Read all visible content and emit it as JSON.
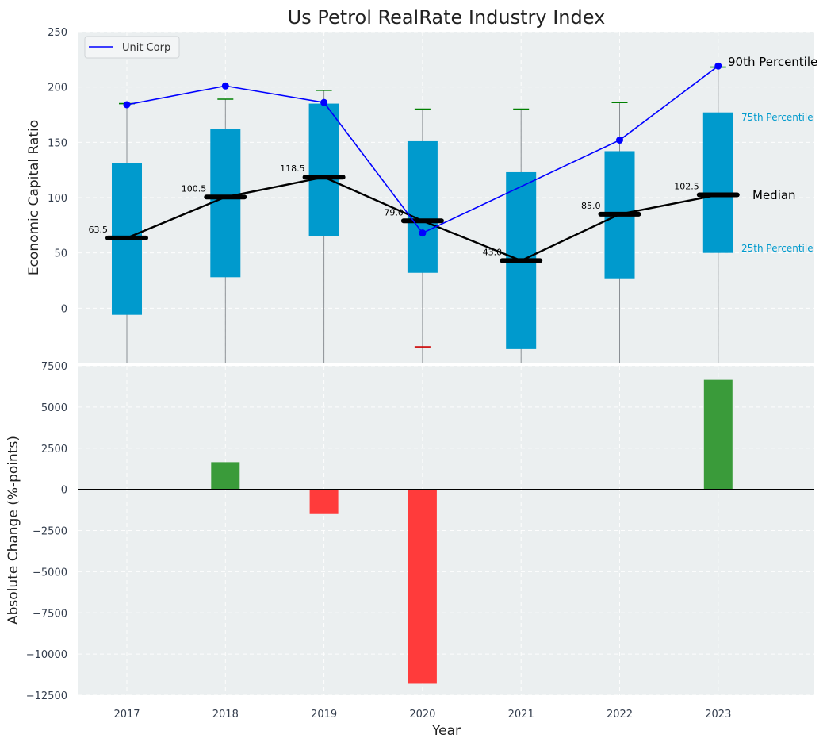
{
  "chart_data": [
    {
      "type": "box",
      "title": "Us Petrol RealRate Industry Index",
      "ylabel": "Economic Capital Ratio",
      "ylim": [
        -50,
        250
      ],
      "yticks": [
        0,
        50,
        100,
        150,
        200,
        250
      ],
      "categories": [
        "2017",
        "2018",
        "2019",
        "2020",
        "2021",
        "2022",
        "2023"
      ],
      "boxes": [
        {
          "year": "2017",
          "q1": -6,
          "q3": 131,
          "median": 63.5,
          "median_label": "63.5",
          "whisker_high": 185,
          "whisker_low": null
        },
        {
          "year": "2018",
          "q1": 28,
          "q3": 162,
          "median": 100.5,
          "median_label": "100.5",
          "whisker_high": 189,
          "whisker_low": null
        },
        {
          "year": "2019",
          "q1": 65,
          "q3": 185,
          "median": 118.5,
          "median_label": "118.5",
          "whisker_high": 197,
          "whisker_low": null
        },
        {
          "year": "2020",
          "q1": 32,
          "q3": 151,
          "median": 79.0,
          "median_label": "79.0",
          "whisker_high": 180,
          "whisker_low": -35
        },
        {
          "year": "2021",
          "q1": -37,
          "q3": 123,
          "median": 43.0,
          "median_label": "43.0",
          "whisker_high": 180,
          "whisker_low": null
        },
        {
          "year": "2022",
          "q1": 27,
          "q3": 142,
          "median": 85.0,
          "median_label": "85.0",
          "whisker_high": 186,
          "whisker_low": null
        },
        {
          "year": "2023",
          "q1": 50,
          "q3": 177,
          "median": 102.5,
          "median_label": "102.5",
          "whisker_high": 218,
          "whisker_low": null
        }
      ],
      "series": [
        {
          "name": "Unit Corp",
          "color": "#0000ff",
          "values": [
            184,
            201,
            186,
            68,
            null,
            152,
            219
          ]
        }
      ],
      "legend": {
        "position": "top-left",
        "entries": [
          "Unit Corp"
        ]
      },
      "annotations": {
        "p90": "90th Percentile",
        "p75": "75th Percentile",
        "median": "Median",
        "p25": "25th Percentile"
      },
      "colors": {
        "box": "#009ACD",
        "median": "#000000",
        "whisker_cap_high": "#008000",
        "whisker_cap_low": "#cc0000",
        "background": "#ebeff0"
      }
    },
    {
      "type": "bar",
      "ylabel": "Absolute Change (%-points)",
      "xlabel": "Year",
      "ylim": [
        -12500,
        7500
      ],
      "yticks": [
        -12500,
        -10000,
        -7500,
        -5000,
        -2500,
        0,
        2500,
        5000,
        7500
      ],
      "categories": [
        "2017",
        "2018",
        "2019",
        "2020",
        "2021",
        "2022",
        "2023"
      ],
      "values": [
        0,
        1650,
        -1500,
        -11800,
        0,
        0,
        6650
      ],
      "colors": {
        "positive": "#3a9b3a",
        "negative": "#ff3b3b"
      }
    }
  ]
}
